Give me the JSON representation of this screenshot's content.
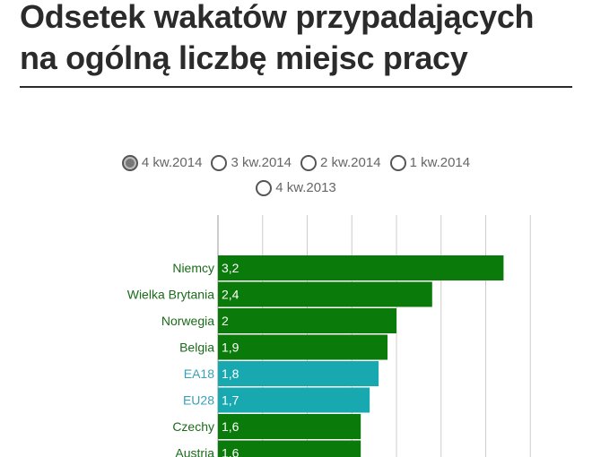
{
  "title": "Odsetek wakatów przypadających na ogólną liczbę miejsc pracy",
  "periods": [
    {
      "label": "4 kw.2014",
      "selected": true
    },
    {
      "label": "3 kw.2014",
      "selected": false
    },
    {
      "label": "2 kw.2014",
      "selected": false
    },
    {
      "label": "1 kw.2014",
      "selected": false
    },
    {
      "label": "4 kw.2013",
      "selected": false
    }
  ],
  "colors": {
    "country": "#0a7a0a",
    "aggregate": "#17a8b0",
    "country_label": "#1a6b1a",
    "aggregate_label": "#3aa0b8",
    "grid": "#cccccc"
  },
  "chart_data": {
    "type": "bar",
    "orientation": "horizontal",
    "categories": [
      "Niemcy",
      "Wielka Brytania",
      "Norwegia",
      "Belgia",
      "EA18",
      "EU28",
      "Czechy",
      "Austria"
    ],
    "values": [
      3.2,
      2.4,
      2,
      1.9,
      1.8,
      1.7,
      1.6,
      1.6
    ],
    "value_labels": [
      "3,2",
      "2,4",
      "2",
      "1,9",
      "1,8",
      "1,7",
      "1,6",
      "1,6"
    ],
    "aggregate_categories": [
      "EA18",
      "EU28"
    ],
    "xlim": [
      0,
      3.5
    ],
    "grid": true
  }
}
